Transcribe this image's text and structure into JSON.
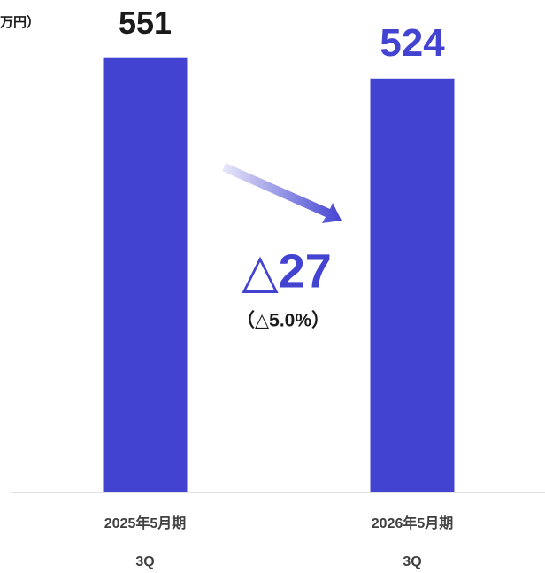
{
  "chart_data": {
    "type": "bar",
    "unit_label": "万円）",
    "categories": [
      [
        "2025年5月期",
        "3Q"
      ],
      [
        "2026年5月期",
        "3Q"
      ]
    ],
    "values": [
      551,
      524
    ],
    "color": "#4343d2",
    "value_label_colors": [
      "#1a1a1a",
      "#4343d2"
    ],
    "ylim": [
      0,
      600
    ],
    "annotations": {
      "change": "△27",
      "change_pct": "（△5.0%）"
    }
  }
}
